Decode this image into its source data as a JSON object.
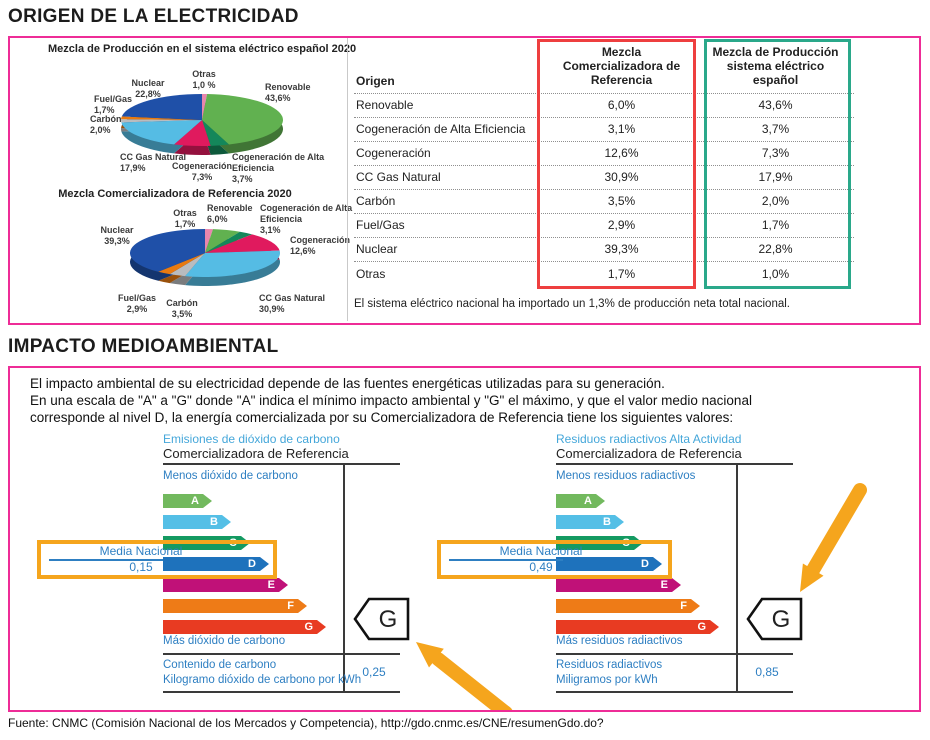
{
  "page": {
    "section1_title": "ORIGEN DE LA ELECTRICIDAD",
    "section2_title": "IMPACTO MEDIOAMBIENTAL",
    "source_note": "Fuente: CNMC (Comisión Nacional de los Mercados y Competencia), http://gdo.cnmc.es/CNE/resumenGdo.do?"
  },
  "origin_table": {
    "col_headers": [
      "Origen",
      "Mezcla Comercializadora de\nReferencia",
      "Mezcla de Producción\nsistema eléctrico español"
    ],
    "rows": [
      [
        "Renovable",
        "6,0%",
        "43,6%"
      ],
      [
        "Cogeneración de Alta Eficiencia",
        "3,1%",
        "3,7%"
      ],
      [
        "Cogeneración",
        "12,6%",
        "7,3%"
      ],
      [
        "CC Gas Natural",
        "30,9%",
        "17,9%"
      ],
      [
        "Carbón",
        "3,5%",
        "2,0%"
      ],
      [
        "Fuel/Gas",
        "2,9%",
        "1,7%"
      ],
      [
        "Nuclear",
        "39,3%",
        "22,8%"
      ],
      [
        "Otras",
        "1,7%",
        "1,0%"
      ]
    ],
    "note": "El sistema eléctrico nacional ha importado un 1,3% de producción neta total nacional.",
    "ref_box_color": "#ee3f3f",
    "prod_box_color": "#2aa88a"
  },
  "impact": {
    "intro": "El impacto ambiental de su electricidad depende de las fuentes energéticas utilizadas para su generación.\nEn una escala de \"A\" a \"G\" donde \"A\" indica el mínimo impacto ambiental y \"G\" el máximo, y que el valor medio nacional\ncorresponde al nivel D, la energía comercializada por su Comercializadora de Referencia tiene los siguientes valores:"
  },
  "chart_data": [
    {
      "type": "pie",
      "title": "Mezcla de Producción en el sistema eléctrico español 2020",
      "categories": [
        "Otras",
        "Renovable",
        "Cogeneración de Alta Eficiencia",
        "Cogeneración",
        "CC Gas Natural",
        "Carbón",
        "Fuel/Gas",
        "Nuclear"
      ],
      "values": [
        1.0,
        43.6,
        3.7,
        7.3,
        17.9,
        2.0,
        1.7,
        22.8
      ],
      "label_lines": [
        [
          "Otras",
          "1,0 %"
        ],
        [
          "Renovable",
          "43,6%"
        ],
        [
          "Cogeneración de Alta",
          "Eficiencia",
          "3,7%"
        ],
        [
          "Cogeneración",
          "7,3%"
        ],
        [
          "CC Gas Natural",
          "17,9%"
        ],
        [
          "Carbón",
          "2,0%"
        ],
        [
          "Fuel/Gas",
          "1,7%"
        ],
        [
          "Nuclear",
          "22,8%"
        ]
      ]
    },
    {
      "type": "pie",
      "title": "Mezcla Comercializadora de Referencia 2020",
      "categories": [
        "Otras",
        "Renovable",
        "Cogeneración de Alta Eficiencia",
        "Cogeneración",
        "CC Gas Natural",
        "Carbón",
        "Fuel/Gas",
        "Nuclear"
      ],
      "values": [
        1.7,
        6.0,
        3.1,
        12.6,
        30.9,
        3.5,
        2.9,
        39.3
      ],
      "label_lines": [
        [
          "Otras",
          "1,7%"
        ],
        [
          "Renovable",
          "6,0%"
        ],
        [
          "Cogeneración de Alta",
          "Eficiencia",
          "3,1%"
        ],
        [
          "Cogeneración",
          "12,6%"
        ],
        [
          "CC Gas Natural",
          "30,9%"
        ],
        [
          "Carbón",
          "3,5%"
        ],
        [
          "Fuel/Gas",
          "2,9%"
        ],
        [
          "Nuclear",
          "39,3%"
        ]
      ]
    },
    {
      "type": "bar",
      "subtype": "energy-rating-scale",
      "title": "Emisiones de dióxido de carbono",
      "subtitle": "Comercializadora de Referencia",
      "scale_note_top": "Menos dióxido de carbono",
      "scale_note_bottom": "Más dióxido de carbono",
      "levels": [
        "A",
        "B",
        "C",
        "D",
        "E",
        "F",
        "G"
      ],
      "rating": "G",
      "national_average": {
        "label": "Media Nacional",
        "value": "0,15",
        "level": "D"
      },
      "metric": {
        "label_line1": "Contenido de carbono",
        "label_line2": "Kilogramo dióxido de carbono por kWh",
        "value": "0,25"
      }
    },
    {
      "type": "bar",
      "subtype": "energy-rating-scale",
      "title": "Residuos radiactivos Alta Actividad",
      "subtitle": "Comercializadora de Referencia",
      "scale_note_top": "Menos residuos radiactivos",
      "scale_note_bottom": "Más residuos radiactivos",
      "levels": [
        "A",
        "B",
        "C",
        "D",
        "E",
        "F",
        "G"
      ],
      "rating": "G",
      "national_average": {
        "label": "Media Nacional",
        "value": "0,49",
        "level": "D"
      },
      "metric": {
        "label_line1": "Residuos radiactivos",
        "label_line2": "Miligramos por kWh",
        "value": "0,85"
      }
    }
  ],
  "colors": {
    "frame_pink": "#ee2c97",
    "arrow_orange": "#f5a51d",
    "highlight_box_orange": "#f5a51d",
    "blue_label": "#2e7fc2",
    "light_blue_title": "#45a7da",
    "pie_palette": [
      "#e886ad",
      "#61b150",
      "#14875a",
      "#e01a5e",
      "#55bce4",
      "#b9bcbf",
      "#e87a10",
      "#1f50a8"
    ],
    "level_colors": [
      "#72b95e",
      "#54bfe6",
      "#149a62",
      "#1e72bc",
      "#c01178",
      "#ee7b17",
      "#e83b22"
    ]
  }
}
